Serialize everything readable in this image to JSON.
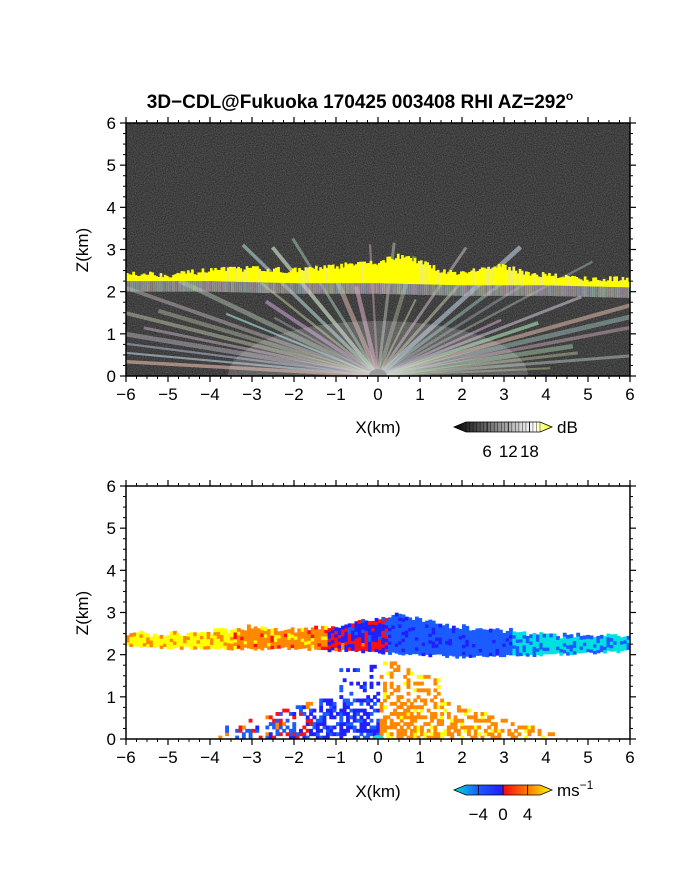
{
  "title": {
    "main": "3D−CDL@Fukuoka 170425 003408 RHI AZ=292",
    "degree": "o"
  },
  "chart_data": [
    {
      "type": "heatmap",
      "panel": "reflectivity",
      "xlabel": "X(km)",
      "ylabel": "Z(km)",
      "xlim": [
        -6,
        6
      ],
      "ylim": [
        0,
        6
      ],
      "x_ticks": [
        "−6",
        "−5",
        "−4",
        "−3",
        "−2",
        "−1",
        "0",
        "1",
        "2",
        "3",
        "4",
        "5",
        "6"
      ],
      "y_ticks": [
        "0",
        "1",
        "2",
        "3",
        "4",
        "5",
        "6"
      ],
      "colorbar": {
        "unit": "dB",
        "tick_labels": [
          "6",
          "12",
          "18"
        ],
        "tick_values": [
          6,
          12,
          18
        ],
        "range": [
          0,
          21
        ],
        "colors": [
          "#000000",
          "#ffffff",
          "#ffff00"
        ]
      },
      "features": {
        "cloud_layer_top_km": [
          [
            -6,
            2.45
          ],
          [
            -5,
            2.4
          ],
          [
            -4,
            2.5
          ],
          [
            -3,
            2.55
          ],
          [
            -2,
            2.5
          ],
          [
            -1,
            2.6
          ],
          [
            0,
            2.7
          ],
          [
            0.5,
            2.85
          ],
          [
            1,
            2.7
          ],
          [
            1.5,
            2.5
          ],
          [
            2,
            2.45
          ],
          [
            2.5,
            2.55
          ],
          [
            3,
            2.6
          ],
          [
            3.5,
            2.45
          ],
          [
            4,
            2.4
          ],
          [
            5,
            2.3
          ],
          [
            6,
            2.3
          ]
        ],
        "cloud_layer_bottom_km": [
          [
            -6,
            2.25
          ],
          [
            -4,
            2.25
          ],
          [
            -2,
            2.2
          ],
          [
            0,
            2.2
          ],
          [
            2,
            2.15
          ],
          [
            4,
            2.15
          ],
          [
            6,
            2.1
          ]
        ],
        "background": "noise"
      }
    },
    {
      "type": "heatmap",
      "panel": "doppler_velocity",
      "xlabel": "X(km)",
      "ylabel": "Z(km)",
      "xlim": [
        -6,
        6
      ],
      "ylim": [
        0,
        6
      ],
      "x_ticks": [
        "−6",
        "−5",
        "−4",
        "−3",
        "−2",
        "−1",
        "0",
        "1",
        "2",
        "3",
        "4",
        "5",
        "6"
      ],
      "y_ticks": [
        "0",
        "1",
        "2",
        "3",
        "4",
        "5",
        "6"
      ],
      "colorbar": {
        "unit": "ms",
        "unit_superscript": "−1",
        "tick_labels": [
          "−4",
          "0",
          "4"
        ],
        "tick_values": [
          -4,
          0,
          4
        ],
        "range": [
          -6,
          6
        ],
        "colors": [
          "#00e0e0",
          "#1a5cff",
          "#2020ff",
          "#ff1010",
          "#ff8800",
          "#ffff00"
        ]
      },
      "features": {
        "upper_layer_top_km": [
          [
            -6,
            2.45
          ],
          [
            -4,
            2.5
          ],
          [
            -3,
            2.6
          ],
          [
            -2,
            2.55
          ],
          [
            -1,
            2.65
          ],
          [
            0,
            2.8
          ],
          [
            0.5,
            2.95
          ],
          [
            1,
            2.8
          ],
          [
            2,
            2.6
          ],
          [
            3,
            2.55
          ],
          [
            4,
            2.45
          ],
          [
            5,
            2.4
          ],
          [
            6,
            2.4
          ]
        ],
        "upper_layer_bottom_km": [
          [
            -6,
            2.2
          ],
          [
            -4,
            2.15
          ],
          [
            -2,
            2.15
          ],
          [
            0,
            2.05
          ],
          [
            2,
            1.95
          ],
          [
            4,
            2.0
          ],
          [
            6,
            2.1
          ]
        ],
        "lower_echo_extent_km": [
          -3.8,
          4.2
        ],
        "lower_echo_top_km": 1.3
      }
    }
  ]
}
